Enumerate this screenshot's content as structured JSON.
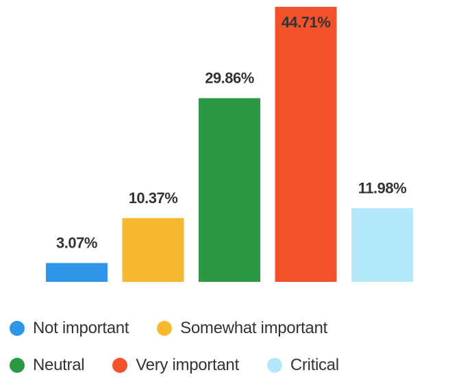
{
  "chart_data": {
    "type": "bar",
    "categories": [
      "Not important",
      "Somewhat important",
      "Neutral",
      "Very important",
      "Critical"
    ],
    "values": [
      3.07,
      10.37,
      29.86,
      44.71,
      11.98
    ],
    "value_labels": [
      "3.07%",
      "10.37%",
      "29.86%",
      "44.71%",
      "11.98%"
    ],
    "colors": [
      "#2f95e8",
      "#f5b82e",
      "#2a9845",
      "#f4522b",
      "#b3e8fa"
    ],
    "unit": "%",
    "ylim": [
      0,
      44.71
    ],
    "grid": false,
    "axes_visible": false,
    "legend_position": "bottom"
  },
  "legend": {
    "items": [
      {
        "label": "Not important",
        "color": "#2f95e8"
      },
      {
        "label": "Somewhat important",
        "color": "#f5b82e"
      },
      {
        "label": "Neutral",
        "color": "#2a9845"
      },
      {
        "label": "Very important",
        "color": "#f4522b"
      },
      {
        "label": "Critical",
        "color": "#b3e8fa"
      }
    ]
  }
}
